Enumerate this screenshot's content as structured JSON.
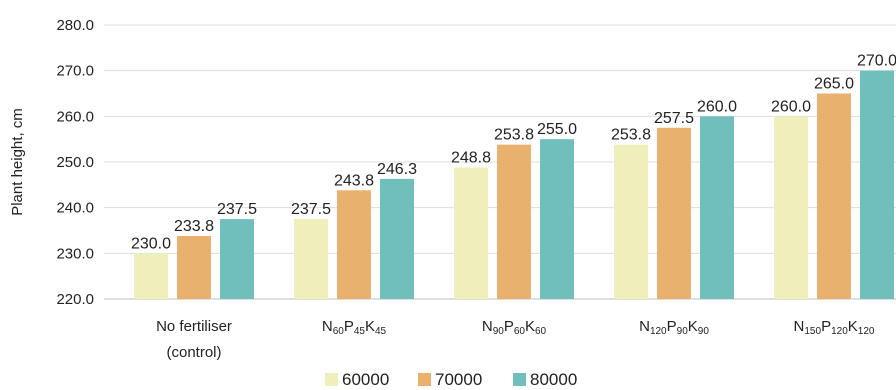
{
  "chart_data": {
    "type": "bar",
    "ylabel": "Plant height, cm",
    "ylim": [
      220,
      280
    ],
    "yticks": [
      "220.0",
      "230.0",
      "240.0",
      "250.0",
      "260.0",
      "270.0",
      "280.0"
    ],
    "grid": true,
    "legend_position": "bottom",
    "categories": [
      [
        {
          "t": "No fertiliser"
        }
      ],
      [
        {
          "t": "N"
        },
        {
          "t": "60",
          "s": true
        },
        {
          "t": "P"
        },
        {
          "t": "45",
          "s": true
        },
        {
          "t": "K"
        },
        {
          "t": "45",
          "s": true
        }
      ],
      [
        {
          "t": "N"
        },
        {
          "t": "90",
          "s": true
        },
        {
          "t": "P"
        },
        {
          "t": "60",
          "s": true
        },
        {
          "t": "K"
        },
        {
          "t": "60",
          "s": true
        }
      ],
      [
        {
          "t": "N"
        },
        {
          "t": "120",
          "s": true
        },
        {
          "t": "P"
        },
        {
          "t": "90",
          "s": true
        },
        {
          "t": "K"
        },
        {
          "t": "90",
          "s": true
        }
      ],
      [
        {
          "t": "N"
        },
        {
          "t": "150",
          "s": true
        },
        {
          "t": "P"
        },
        {
          "t": "120",
          "s": true
        },
        {
          "t": "K"
        },
        {
          "t": "120",
          "s": true
        }
      ]
    ],
    "category_second_line": [
      "(control)",
      "",
      "",
      "",
      ""
    ],
    "series": [
      {
        "name": "60000",
        "color": "#eeefbb",
        "values": [
          230.0,
          237.5,
          248.8,
          253.8,
          260.0
        ],
        "labels": [
          "230.0",
          "237.5",
          "248.8",
          "253.8",
          "260.0"
        ]
      },
      {
        "name": "70000",
        "color": "#e8b26e",
        "values": [
          233.8,
          243.8,
          253.8,
          257.5,
          265.0
        ],
        "labels": [
          "233.8",
          "243.8",
          "253.8",
          "257.5",
          "265.0"
        ]
      },
      {
        "name": "80000",
        "color": "#71bfbd",
        "values": [
          237.5,
          246.3,
          255.0,
          260.0,
          270.0
        ],
        "labels": [
          "237.5",
          "246.3",
          "255.0",
          "260.0",
          "270.0"
        ]
      }
    ]
  }
}
